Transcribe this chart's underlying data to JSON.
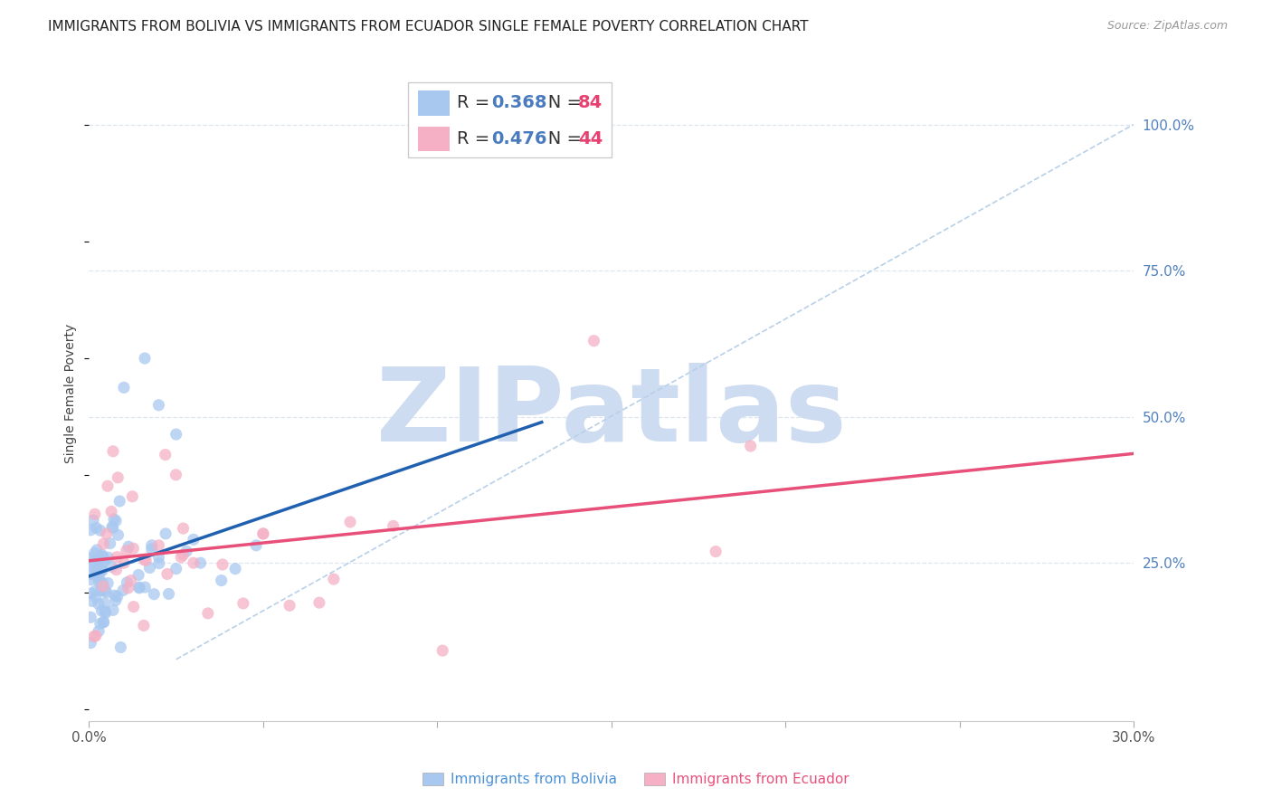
{
  "title": "IMMIGRANTS FROM BOLIVIA VS IMMIGRANTS FROM ECUADOR SINGLE FEMALE POVERTY CORRELATION CHART",
  "source": "Source: ZipAtlas.com",
  "ylabel": "Single Female Poverty",
  "xlim": [
    0.0,
    0.3
  ],
  "ylim": [
    -0.02,
    1.1
  ],
  "bolivia_color": "#a8c8f0",
  "ecuador_color": "#f5b0c5",
  "bolivia_line_color": "#2060b0",
  "ecuador_line_color": "#e8507a",
  "reference_line_color": "#b8d0e8",
  "R_bolivia": 0.368,
  "N_bolivia": 84,
  "R_ecuador": 0.476,
  "N_ecuador": 44,
  "watermark_text": "ZIPatlas",
  "watermark_color": "#cddcf0",
  "grid_color": "#dde5f0",
  "background_color": "#ffffff",
  "title_fontsize": 11,
  "tick_color": "#5080c0",
  "tick_fontsize": 11,
  "ylabel_fontsize": 10,
  "source_fontsize": 9,
  "legend_fontsize": 14,
  "legend_r_color": "#4a7bbf",
  "legend_n_color": "#e84070",
  "bottom_legend_bolivia_color": "#4a90d9",
  "bottom_legend_ecuador_color": "#e8527a"
}
